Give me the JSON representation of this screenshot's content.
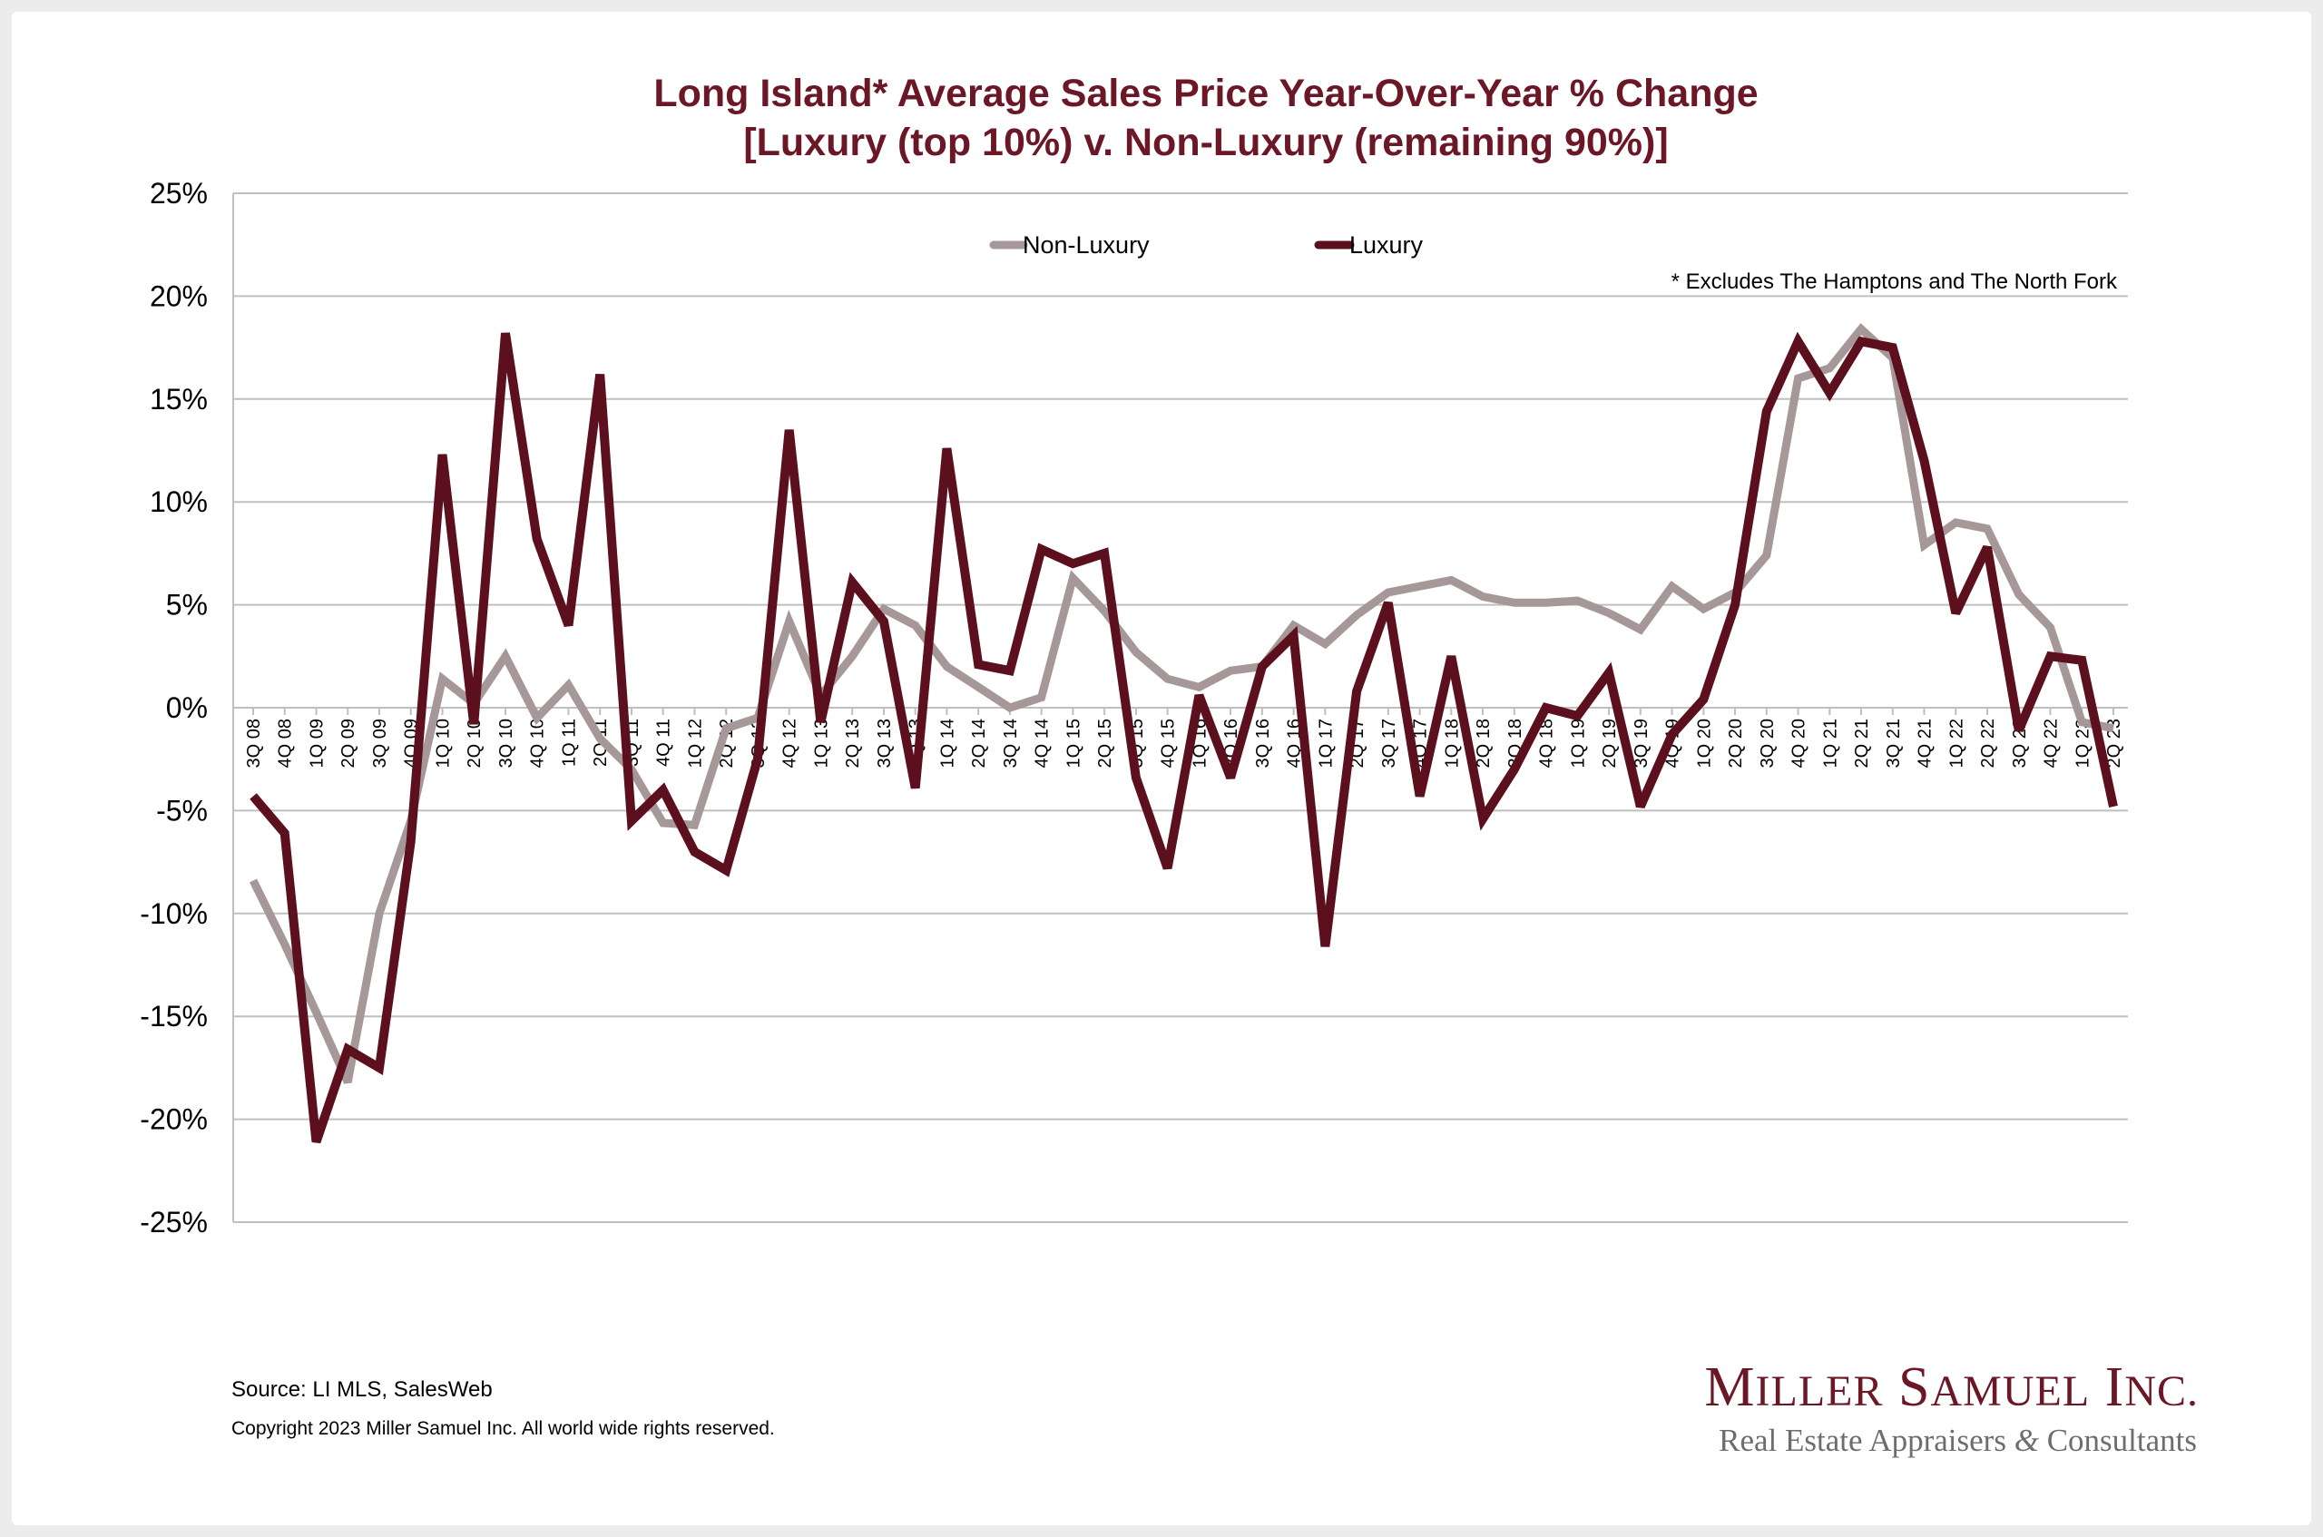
{
  "colors": {
    "luxury": "#5c0f1d",
    "non_luxury": "#a69898",
    "title": "#6b1726",
    "gridline": "#bfbfbf",
    "brand_secondary": "#6d6d6d"
  },
  "chart_data": {
    "type": "line",
    "title": "Long Island* Average Sales Price Year-Over-Year % Change",
    "subtitle": "[Luxury (top 10%) v. Non-Luxury (remaining 90%)]",
    "ylabel": "",
    "xlabel": "",
    "ylim": [
      -25,
      25
    ],
    "yticks": [
      25,
      20,
      15,
      10,
      5,
      0,
      -5,
      -10,
      -15,
      -20,
      -25
    ],
    "ytick_labels": [
      "25%",
      "20%",
      "15%",
      "10%",
      "5%",
      "0%",
      "-5%",
      "-10%",
      "-15%",
      "-20%",
      "-25%"
    ],
    "grid": true,
    "legend_position": "top",
    "categories": [
      "3Q 08",
      "4Q 08",
      "1Q 09",
      "2Q 09",
      "3Q 09",
      "4Q 09",
      "1Q 10",
      "2Q 10",
      "3Q 10",
      "4Q 10",
      "1Q 11",
      "2Q 11",
      "3Q 11",
      "4Q 11",
      "1Q 12",
      "2Q 12",
      "3Q 12",
      "4Q 12",
      "1Q 13",
      "2Q 13",
      "3Q 13",
      "4Q 13",
      "1Q 14",
      "2Q 14",
      "3Q 14",
      "4Q 14",
      "1Q 15",
      "2Q 15",
      "3Q 15",
      "4Q 15",
      "1Q 16",
      "2Q 16",
      "3Q 16",
      "4Q 16",
      "1Q 17",
      "2Q 17",
      "3Q 17",
      "4Q 17",
      "1Q 18",
      "2Q 18",
      "3Q 18",
      "4Q 18",
      "1Q 19",
      "2Q 19",
      "3Q 19",
      "4Q 19",
      "1Q 20",
      "2Q 20",
      "3Q 20",
      "4Q 20",
      "1Q 21",
      "2Q 21",
      "3Q 21",
      "4Q 21",
      "1Q 22",
      "2Q 22",
      "3Q 22",
      "4Q 22",
      "1Q 23",
      "2Q 23"
    ],
    "series": [
      {
        "name": "Non-Luxury",
        "values": [
          -8.4,
          -11.5,
          -14.8,
          -18.2,
          -10.0,
          -5.5,
          1.4,
          0.2,
          2.5,
          -0.5,
          1.1,
          -1.5,
          -3.0,
          -5.6,
          -5.7,
          -1.0,
          -0.5,
          4.2,
          0.6,
          2.5,
          4.8,
          4.0,
          2.0,
          1.0,
          0.0,
          0.5,
          6.3,
          4.7,
          2.7,
          1.4,
          1.0,
          1.8,
          2.0,
          4.0,
          3.1,
          4.5,
          5.6,
          5.9,
          6.2,
          5.4,
          5.1,
          5.1,
          5.2,
          4.6,
          3.8,
          5.9,
          4.8,
          5.6,
          7.4,
          16.0,
          16.5,
          18.4,
          17.0,
          7.9,
          9.0,
          8.7,
          5.5,
          3.9,
          -0.7,
          -1.0
        ]
      },
      {
        "name": "Luxury",
        "values": [
          -4.3,
          -6.1,
          -21.1,
          -16.6,
          -17.5,
          -6.5,
          12.3,
          -0.8,
          18.2,
          8.2,
          4.0,
          16.2,
          -5.5,
          -4.0,
          -7.0,
          -7.9,
          -2.5,
          13.5,
          -0.7,
          6.1,
          4.2,
          -3.9,
          12.6,
          2.1,
          1.8,
          7.7,
          7.0,
          7.5,
          -3.4,
          -7.8,
          0.6,
          -3.4,
          2.0,
          3.5,
          -11.6,
          0.8,
          5.1,
          -4.3,
          2.5,
          -5.4,
          -3.0,
          0.0,
          -0.4,
          1.7,
          -4.8,
          -1.3,
          0.4,
          5.0,
          14.4,
          17.8,
          15.3,
          17.8,
          17.5,
          12.0,
          4.6,
          7.8,
          -1.1,
          2.5,
          2.3,
          -4.8
        ]
      }
    ],
    "legend": [
      "Non-Luxury",
      "Luxury"
    ],
    "annotation": "* Excludes The Hamptons and The North Fork"
  },
  "footer": {
    "source": "Source:  LI MLS, SalesWeb",
    "copyright": "Copyright 2023 Miller Samuel Inc.  All world wide rights reserved."
  },
  "brand": {
    "name_m": "M",
    "name_iller": "ILLER",
    "name_s": "S",
    "name_amuel": "AMUEL",
    "name_i": "I",
    "name_nc": "NC.",
    "tagline_a": "Real Estate Appraisers",
    "tagline_amp": "&",
    "tagline_b": "Consultants"
  }
}
